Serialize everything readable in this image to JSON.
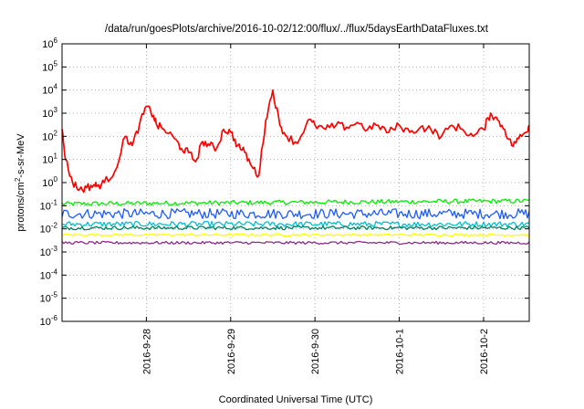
{
  "chart_data": {
    "type": "line",
    "title": "/data/run/goesPlots/archive/2016-10-02/12:00/flux/../flux/5daysEarthDataFluxes.txt",
    "xlabel": "Coordinated Universal Time (UTC)",
    "ylabel": "protons/cm²-s-sr-MeV",
    "y_scale": "log",
    "ylim": [
      1e-06,
      1000000.0
    ],
    "xlim": [
      "2016-09-27T00:00",
      "2016-10-02T13:00"
    ],
    "grid": true,
    "y_ticks": [
      {
        "base": "10",
        "exp": "-6"
      },
      {
        "base": "10",
        "exp": "-5"
      },
      {
        "base": "10",
        "exp": "-4"
      },
      {
        "base": "10",
        "exp": "-3"
      },
      {
        "base": "10",
        "exp": "-2"
      },
      {
        "base": "10",
        "exp": "-1"
      },
      {
        "base": "10",
        "exp": "0"
      },
      {
        "base": "10",
        "exp": "1"
      },
      {
        "base": "10",
        "exp": "2"
      },
      {
        "base": "10",
        "exp": "3"
      },
      {
        "base": "10",
        "exp": "4"
      },
      {
        "base": "10",
        "exp": "5"
      },
      {
        "base": "10",
        "exp": "6"
      }
    ],
    "x_ticks": [
      "2016-9-28",
      "2016-9-29",
      "2016-9-30",
      "2016-10-1",
      "2016-10-2"
    ],
    "series": [
      {
        "color": "#ff0000",
        "x": [
          "2016-09-27T00:00",
          "2016-09-27T01:00",
          "2016-09-27T03:00",
          "2016-09-27T05:00",
          "2016-09-27T07:00",
          "2016-09-27T09:00",
          "2016-09-27T10:00",
          "2016-09-27T12:00",
          "2016-09-27T15:00",
          "2016-09-27T18:00",
          "2016-09-27T20:00",
          "2016-09-27T22:00",
          "2016-09-28T00:00",
          "2016-09-28T02:00",
          "2016-09-28T03:00",
          "2016-09-28T05:00",
          "2016-09-28T08:00",
          "2016-09-28T10:00",
          "2016-09-28T12:00",
          "2016-09-28T14:00",
          "2016-09-28T16:00",
          "2016-09-28T18:00",
          "2016-09-28T20:00",
          "2016-09-28T22:00",
          "2016-09-29T00:00",
          "2016-09-29T02:00",
          "2016-09-29T04:00",
          "2016-09-29T06:00",
          "2016-09-29T08:00",
          "2016-09-29T10:00",
          "2016-09-29T12:00",
          "2016-09-29T14:00",
          "2016-09-29T16:00",
          "2016-09-29T19:00",
          "2016-09-29T22:00",
          "2016-09-30T00:00",
          "2016-09-30T03:00",
          "2016-09-30T06:00",
          "2016-09-30T09:00",
          "2016-09-30T12:00",
          "2016-09-30T15:00",
          "2016-09-30T18:00",
          "2016-09-30T21:00",
          "2016-10-01T00:00",
          "2016-10-01T03:00",
          "2016-10-01T06:00",
          "2016-10-01T09:00",
          "2016-10-01T12:00",
          "2016-10-01T15:00",
          "2016-10-01T18:00",
          "2016-10-01T21:00",
          "2016-10-02T00:00",
          "2016-10-02T02:00",
          "2016-10-02T04:00",
          "2016-10-02T06:00",
          "2016-10-02T08:00",
          "2016-10-02T10:00",
          "2016-10-02T12:00",
          "2016-10-02T13:00"
        ],
        "y": [
          200,
          10,
          1,
          0.5,
          0.6,
          0.8,
          0.7,
          1,
          3,
          100,
          40,
          300,
          2000,
          800,
          300,
          200,
          80,
          30,
          20,
          8,
          60,
          40,
          30,
          200,
          150,
          40,
          20,
          5,
          2,
          500,
          10000,
          300,
          100,
          50,
          500,
          300,
          200,
          300,
          250,
          400,
          200,
          300,
          150,
          300,
          150,
          250,
          200,
          100,
          300,
          200,
          100,
          200,
          1000,
          500,
          200,
          40,
          80,
          150,
          300
        ]
      },
      {
        "color": "#00ee00",
        "x": [
          "2016-09-27T00:00",
          "2016-10-02T13:00"
        ],
        "y": [
          0.12,
          0.16
        ]
      },
      {
        "color": "#1e5bff",
        "x": [
          "2016-09-27T00:00",
          "2016-10-02T13:00"
        ],
        "y": [
          0.045,
          0.045
        ]
      },
      {
        "color": "#00bfd0",
        "x": [
          "2016-09-27T00:00",
          "2016-10-02T13:00"
        ],
        "y": [
          0.016,
          0.016
        ]
      },
      {
        "color": "#008060",
        "x": [
          "2016-09-27T00:00",
          "2016-10-02T13:00"
        ],
        "y": [
          0.011,
          0.011
        ]
      },
      {
        "color": "#ffff00",
        "x": [
          "2016-09-27T00:00",
          "2016-10-02T13:00"
        ],
        "y": [
          0.0055,
          0.0055
        ]
      },
      {
        "color": "#8b2a8b",
        "x": [
          "2016-09-27T00:00",
          "2016-10-02T13:00"
        ],
        "y": [
          0.0025,
          0.0025
        ]
      }
    ]
  }
}
